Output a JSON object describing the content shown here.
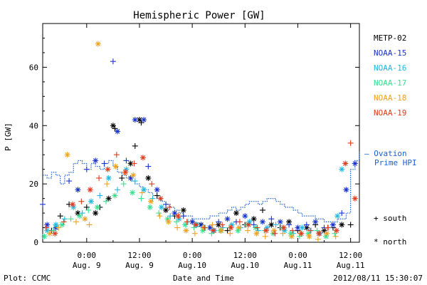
{
  "chart_data": {
    "type": "scatter",
    "title": "Hemispheric Power [GW]",
    "ylabel": "P [GW]",
    "xlabel": "Date and Time",
    "ylim": [
      0,
      75
    ],
    "y_ticks": [
      0,
      20,
      40,
      60
    ],
    "xlim": [
      -5,
      31
    ],
    "x_ticks": [
      {
        "x": 0,
        "l1": "0:00",
        "l2": "Aug. 9"
      },
      {
        "x": 6,
        "l1": "12:00",
        "l2": "Aug. 9"
      },
      {
        "x": 12,
        "l1": "0:00",
        "l2": "Aug.10"
      },
      {
        "x": 18,
        "l1": "12:00",
        "l2": "Aug.10"
      },
      {
        "x": 24,
        "l1": "0:00",
        "l2": "Aug.11"
      },
      {
        "x": 30,
        "l1": "12:00",
        "l2": "Aug.11"
      }
    ],
    "x_units": "hours from 2012-08-09 00:00 UT",
    "legend": [
      {
        "name": "METP-02",
        "color": "#000000"
      },
      {
        "name": "NOAA-15",
        "color": "#1a33cc"
      },
      {
        "name": "NOAA-16",
        "color": "#22b8e0"
      },
      {
        "name": "NOAA-17",
        "color": "#38e090"
      },
      {
        "name": "NOAA-18",
        "color": "#f0a020"
      },
      {
        "name": "NOAA-19",
        "color": "#e03a1c"
      }
    ],
    "marker_legend": [
      {
        "symbol": "+",
        "label": "south"
      },
      {
        "symbol": "*",
        "label": "north"
      }
    ],
    "ovation": {
      "label1": "— Ovation",
      "label2": "Prime HPI",
      "color": "#1a5fd0",
      "x": [
        -5,
        -4.5,
        -4,
        -3.5,
        -3,
        -2.5,
        -2,
        -1.5,
        -1,
        -0.5,
        0,
        0.5,
        1,
        1.5,
        2,
        2.5,
        3,
        3.5,
        4,
        4.5,
        5,
        5.5,
        6,
        6.5,
        7,
        7.5,
        8,
        8.5,
        9,
        9.5,
        10,
        10.5,
        11,
        11.5,
        12,
        12.5,
        13,
        13.5,
        14,
        14.5,
        15,
        15.5,
        16,
        16.5,
        17,
        17.5,
        18,
        18.5,
        19,
        19.5,
        20,
        20.5,
        21,
        21.5,
        22,
        22.5,
        23,
        23.5,
        24,
        24.5,
        25,
        25.5,
        26,
        26.5,
        27,
        27.5,
        28,
        28.5,
        29,
        29.5,
        30,
        30.5,
        31
      ],
      "y": [
        23,
        22,
        24,
        23,
        20,
        23,
        24,
        27,
        28,
        27,
        25,
        27,
        26,
        25,
        27,
        28,
        26,
        24,
        23,
        22,
        21,
        20,
        19,
        18,
        17,
        16,
        15,
        14,
        13,
        12,
        11,
        10,
        9,
        9,
        8,
        8,
        8,
        8,
        9,
        9,
        10,
        10,
        11,
        12,
        11,
        12,
        13,
        14,
        14,
        13,
        14,
        15,
        15,
        14,
        13,
        12,
        12,
        11,
        10,
        9,
        9,
        9,
        8,
        8,
        7,
        7,
        7,
        8,
        8,
        10,
        25,
        28,
        31
      ]
    },
    "series": [
      {
        "name": "METP-02",
        "values": [
          [
            -4,
            4,
            "+"
          ],
          [
            -3,
            9,
            "+"
          ],
          [
            -2,
            13,
            "+"
          ],
          [
            -1,
            10,
            "*"
          ],
          [
            0,
            12,
            "+"
          ],
          [
            1,
            10,
            "*"
          ],
          [
            1.5,
            12,
            "+"
          ],
          [
            2.5,
            15,
            "*"
          ],
          [
            3,
            40,
            "*"
          ],
          [
            3.2,
            39,
            "+"
          ],
          [
            4,
            22,
            "+"
          ],
          [
            5,
            27,
            "*"
          ],
          [
            5.5,
            33,
            "+"
          ],
          [
            6,
            42,
            "*"
          ],
          [
            6.2,
            41,
            "+"
          ],
          [
            7,
            22,
            "*"
          ],
          [
            8,
            16,
            "+"
          ],
          [
            9,
            11,
            "*"
          ],
          [
            10,
            9,
            "+"
          ],
          [
            11,
            11,
            "*"
          ],
          [
            12,
            7,
            "+"
          ],
          [
            13,
            6,
            "*"
          ],
          [
            14,
            5,
            "+"
          ],
          [
            15,
            6,
            "*"
          ],
          [
            16,
            4,
            "+"
          ],
          [
            17,
            10,
            "*"
          ],
          [
            18,
            6,
            "+"
          ],
          [
            19,
            8,
            "*"
          ],
          [
            20,
            11,
            "+"
          ],
          [
            21,
            6,
            "*"
          ],
          [
            22,
            5,
            "+"
          ],
          [
            23,
            7,
            "*"
          ],
          [
            24,
            4,
            "+"
          ],
          [
            25,
            5,
            "*"
          ],
          [
            26,
            6,
            "+"
          ],
          [
            27,
            4,
            "*"
          ],
          [
            28,
            5,
            "+"
          ],
          [
            29,
            6,
            "*"
          ],
          [
            30,
            6,
            "+"
          ]
        ]
      },
      {
        "name": "NOAA-15",
        "values": [
          [
            -5,
            13,
            "+"
          ],
          [
            -4.5,
            6,
            "*"
          ],
          [
            -3.5,
            5,
            "*"
          ],
          [
            -2,
            21,
            "+"
          ],
          [
            -1,
            18,
            "*"
          ],
          [
            0,
            25,
            "+"
          ],
          [
            1,
            28,
            "*"
          ],
          [
            2,
            27,
            "+"
          ],
          [
            3,
            62,
            "+"
          ],
          [
            3.5,
            38,
            "*"
          ],
          [
            4.5,
            28,
            "+"
          ],
          [
            5,
            22,
            "*"
          ],
          [
            5.5,
            42,
            "*"
          ],
          [
            6.5,
            42,
            "*"
          ],
          [
            7,
            26,
            "+"
          ],
          [
            8,
            18,
            "*"
          ],
          [
            9,
            13,
            "+"
          ],
          [
            10,
            10,
            "*"
          ],
          [
            11,
            9,
            "+"
          ],
          [
            12,
            7,
            "*"
          ],
          [
            13,
            6,
            "+"
          ],
          [
            14,
            5,
            "*"
          ],
          [
            15,
            7,
            "+"
          ],
          [
            16,
            8,
            "*"
          ],
          [
            17,
            7,
            "+"
          ],
          [
            18,
            9,
            "*"
          ],
          [
            19,
            6,
            "+"
          ],
          [
            20,
            7,
            "*"
          ],
          [
            21,
            8,
            "+"
          ],
          [
            22,
            7,
            "*"
          ],
          [
            23,
            6,
            "+"
          ],
          [
            24,
            5,
            "*"
          ],
          [
            25,
            6,
            "+"
          ],
          [
            26,
            7,
            "*"
          ],
          [
            27,
            5,
            "+"
          ],
          [
            28,
            6,
            "*"
          ],
          [
            29,
            10,
            "+"
          ],
          [
            29.5,
            18,
            "*"
          ],
          [
            30.5,
            27,
            "*"
          ]
        ]
      },
      {
        "name": "NOAA-16",
        "values": [
          [
            -4.5,
            4,
            "*"
          ],
          [
            -3.5,
            6,
            "*"
          ],
          [
            -2.5,
            8,
            "+"
          ],
          [
            -1.5,
            12,
            "*"
          ],
          [
            -0.5,
            10,
            "+"
          ],
          [
            0.5,
            14,
            "*"
          ],
          [
            1.5,
            16,
            "+"
          ],
          [
            2.5,
            22,
            "*"
          ],
          [
            3.5,
            18,
            "+"
          ],
          [
            4.5,
            25,
            "*"
          ],
          [
            5.5,
            21,
            "+"
          ],
          [
            6.5,
            18,
            "*"
          ],
          [
            7.5,
            15,
            "+"
          ],
          [
            8.5,
            12,
            "*"
          ],
          [
            9.5,
            9,
            "+"
          ],
          [
            10.5,
            8,
            "*"
          ],
          [
            11.5,
            7,
            "+"
          ],
          [
            12.5,
            6,
            "*"
          ],
          [
            13.5,
            5,
            "+"
          ],
          [
            14.5,
            4,
            "*"
          ],
          [
            15.5,
            5,
            "+"
          ],
          [
            16.5,
            6,
            "*"
          ],
          [
            17.5,
            5,
            "+"
          ],
          [
            18.5,
            7,
            "*"
          ],
          [
            19.5,
            4,
            "+"
          ],
          [
            20.5,
            5,
            "*"
          ],
          [
            21.5,
            6,
            "+"
          ],
          [
            22.5,
            4,
            "*"
          ],
          [
            23.5,
            3,
            "+"
          ],
          [
            24.5,
            5,
            "*"
          ],
          [
            25.5,
            4,
            "+"
          ],
          [
            26.5,
            3,
            "*"
          ],
          [
            27.5,
            5,
            "+"
          ],
          [
            28.5,
            9,
            "*"
          ],
          [
            29,
            25,
            "*"
          ]
        ]
      },
      {
        "name": "NOAA-17",
        "values": [
          [
            -4.8,
            2,
            "*"
          ],
          [
            -3.8,
            4,
            "+"
          ],
          [
            -2.8,
            6,
            "*"
          ],
          [
            -1.8,
            8,
            "+"
          ],
          [
            -0.8,
            9,
            "*"
          ],
          [
            0.2,
            11,
            "+"
          ],
          [
            1.2,
            12,
            "*"
          ],
          [
            2.2,
            14,
            "+"
          ],
          [
            3.2,
            16,
            "*"
          ],
          [
            4.2,
            20,
            "+"
          ],
          [
            5.2,
            17,
            "*"
          ],
          [
            6.2,
            15,
            "+"
          ],
          [
            7.2,
            12,
            "*"
          ],
          [
            8.2,
            10,
            "+"
          ],
          [
            9.2,
            8,
            "*"
          ],
          [
            10.2,
            7,
            "+"
          ],
          [
            11.2,
            6,
            "*"
          ],
          [
            12.2,
            5,
            "+"
          ],
          [
            13.2,
            4,
            "*"
          ],
          [
            14.2,
            3,
            "+"
          ],
          [
            15.2,
            4,
            "*"
          ],
          [
            16.2,
            5,
            "+"
          ],
          [
            17.2,
            4,
            "*"
          ],
          [
            18.2,
            6,
            "+"
          ],
          [
            19.2,
            5,
            "*"
          ],
          [
            20.2,
            4,
            "+"
          ],
          [
            21.2,
            3,
            "*"
          ],
          [
            22.2,
            5,
            "+"
          ],
          [
            23.2,
            3,
            "*"
          ],
          [
            24.2,
            2,
            "+"
          ],
          [
            25.2,
            3,
            "*"
          ],
          [
            26.2,
            4,
            "+"
          ],
          [
            27.2,
            2,
            "*"
          ],
          [
            28.2,
            3,
            "+"
          ]
        ]
      },
      {
        "name": "NOAA-18",
        "values": [
          [
            -4.2,
            3,
            "*"
          ],
          [
            -3.2,
            5,
            "+"
          ],
          [
            -2.2,
            30,
            "*"
          ],
          [
            -1.2,
            7,
            "+"
          ],
          [
            -0.2,
            8,
            "*"
          ],
          [
            0.3,
            6,
            "+"
          ],
          [
            1.3,
            68,
            "*"
          ],
          [
            2.3,
            20,
            "+"
          ],
          [
            3.3,
            26,
            "*"
          ],
          [
            4.3,
            24,
            "+"
          ],
          [
            5.3,
            23,
            "*"
          ],
          [
            6.3,
            17,
            "+"
          ],
          [
            7.3,
            14,
            "*"
          ],
          [
            8.3,
            9,
            "+"
          ],
          [
            9.3,
            7,
            "*"
          ],
          [
            10.3,
            5,
            "+"
          ],
          [
            11.3,
            4,
            "*"
          ],
          [
            12.3,
            3,
            "+"
          ],
          [
            13.3,
            5,
            "*"
          ],
          [
            14.3,
            6,
            "+"
          ],
          [
            15.3,
            4,
            "*"
          ],
          [
            16.3,
            3,
            "+"
          ],
          [
            17.3,
            5,
            "*"
          ],
          [
            18.3,
            4,
            "+"
          ],
          [
            19.3,
            3,
            "*"
          ],
          [
            20.3,
            2,
            "+"
          ],
          [
            21.3,
            4,
            "*"
          ],
          [
            22.3,
            3,
            "+"
          ],
          [
            23.3,
            2,
            "*"
          ],
          [
            24.3,
            3,
            "+"
          ],
          [
            25.3,
            2,
            "*"
          ],
          [
            26.3,
            1,
            "+"
          ],
          [
            27.3,
            3,
            "*"
          ],
          [
            28.3,
            2,
            "+"
          ]
        ]
      },
      {
        "name": "NOAA-19",
        "values": [
          [
            -4.6,
            5,
            "+"
          ],
          [
            -3.6,
            3,
            "*"
          ],
          [
            -2.6,
            7,
            "+"
          ],
          [
            -1.6,
            13,
            "*"
          ],
          [
            -0.6,
            14,
            "+"
          ],
          [
            0.4,
            18,
            "*"
          ],
          [
            1.4,
            22,
            "+"
          ],
          [
            2.4,
            25,
            "*"
          ],
          [
            3.4,
            30,
            "+"
          ],
          [
            4.4,
            24,
            "*"
          ],
          [
            5.4,
            27,
            "+"
          ],
          [
            6.4,
            29,
            "*"
          ],
          [
            7.4,
            20,
            "+"
          ],
          [
            8.4,
            15,
            "*"
          ],
          [
            9.4,
            12,
            "+"
          ],
          [
            10.4,
            9,
            "*"
          ],
          [
            11.4,
            7,
            "+"
          ],
          [
            12.4,
            6,
            "*"
          ],
          [
            13.4,
            5,
            "+"
          ],
          [
            14.4,
            4,
            "*"
          ],
          [
            15.4,
            6,
            "+"
          ],
          [
            16.4,
            5,
            "*"
          ],
          [
            17.4,
            7,
            "+"
          ],
          [
            18.4,
            6,
            "*"
          ],
          [
            19.4,
            5,
            "+"
          ],
          [
            20.4,
            4,
            "*"
          ],
          [
            21.4,
            3,
            "+"
          ],
          [
            22.4,
            5,
            "*"
          ],
          [
            23.4,
            4,
            "+"
          ],
          [
            24.4,
            3,
            "*"
          ],
          [
            25.4,
            4,
            "+"
          ],
          [
            26.4,
            3,
            "*"
          ],
          [
            27.4,
            5,
            "+"
          ],
          [
            28.4,
            4,
            "*"
          ],
          [
            29.4,
            27,
            "*"
          ],
          [
            30,
            34,
            "+"
          ],
          [
            30.5,
            15,
            "*"
          ]
        ]
      }
    ]
  },
  "footer": {
    "plot_credit": "Plot: CCMC",
    "timestamp": "2012/08/11 15:30:07"
  }
}
